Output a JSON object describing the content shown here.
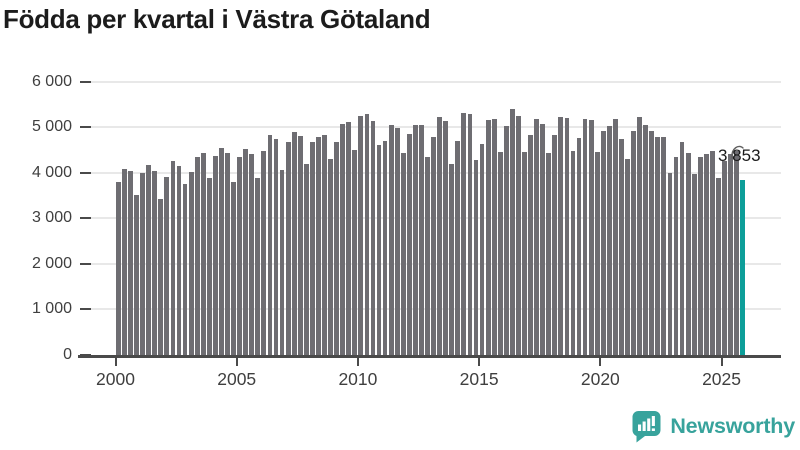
{
  "header": {
    "title": "Födda per kvartal i Västra Götaland"
  },
  "chart_data": {
    "type": "bar",
    "title": "Födda per kvartal i Västra Götaland",
    "frequency": "quarterly",
    "period_start": "2000 Q1",
    "period_end": "2025 Q4",
    "xlabel": "",
    "ylabel": "",
    "ylim": [
      0,
      6000
    ],
    "grid": "horizontal",
    "legend": "none",
    "xticks": [
      "2000",
      "2005",
      "2010",
      "2015",
      "2020",
      "2025"
    ],
    "yticks": {
      "values": [
        0,
        1000,
        2000,
        3000,
        4000,
        5000,
        6000
      ],
      "labels": [
        "0",
        "1 000",
        "2 000",
        "3 000",
        "4 000",
        "5 000",
        "6 000"
      ]
    },
    "series": [
      {
        "name": "Födda",
        "values": [
          3800,
          4090,
          4040,
          3520,
          3990,
          4180,
          4040,
          3430,
          3910,
          4260,
          4150,
          3750,
          4020,
          4350,
          4430,
          3890,
          4370,
          4540,
          4430,
          3800,
          4350,
          4520,
          4410,
          3890,
          4480,
          4840,
          4740,
          4060,
          4680,
          4890,
          4820,
          4190,
          4670,
          4800,
          4830,
          4300,
          4670,
          5070,
          5110,
          4500,
          5250,
          5300,
          5140,
          4610,
          4700,
          5060,
          4990,
          4440,
          4850,
          5060,
          5060,
          4350,
          4800,
          5220,
          5140,
          4190,
          4700,
          5310,
          5290,
          4290,
          4630,
          5170,
          5190,
          4450,
          5040,
          5400,
          5260,
          4450,
          4830,
          5190,
          5070,
          4430,
          4840,
          5220,
          5210,
          4480,
          4760,
          5190,
          5170,
          4450,
          4920,
          5040,
          5180,
          4750,
          4300,
          4920,
          5220,
          5050,
          4930,
          4780,
          4800,
          4010,
          4340,
          4670,
          4430,
          3970,
          4350,
          4420,
          4480,
          3890,
          4260,
          4420,
          4480,
          3853
        ]
      }
    ],
    "highlight": {
      "index": 103,
      "value": 3853,
      "label": "3 853"
    },
    "colors": {
      "bar": "#6e6d72",
      "highlight": "#0d9e99",
      "grid": "#e8e8e8",
      "axis": "#4a4a4a",
      "annotation_arrow": "#606060"
    }
  },
  "footer": {
    "brand_name": "Newsworthy",
    "brand_color": "#38a39c"
  }
}
